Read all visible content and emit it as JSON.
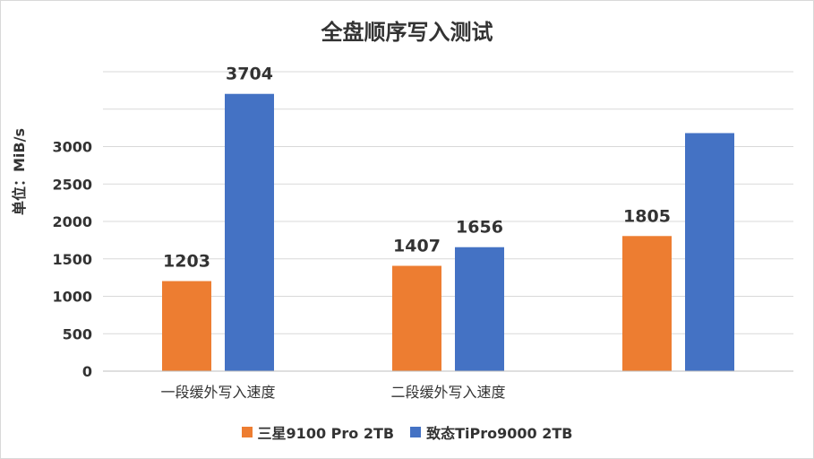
{
  "chart_data": {
    "type": "bar",
    "title": "全盘顺序写入测试",
    "ylabel": "单位：MiB/s",
    "xlabel": "",
    "ylim": [
      0,
      4000
    ],
    "yticks": [
      0,
      500,
      1000,
      1500,
      2000,
      2500,
      3000
    ],
    "ytick_labels": [
      "0",
      "500",
      "1000",
      "1500",
      "2000",
      "2500",
      "3000"
    ],
    "categories": [
      "一段缓外写入速度",
      "二段缓外写入速度",
      ""
    ],
    "series": [
      {
        "name": "三星9100 Pro 2TB",
        "color": "#ED7D31",
        "values": [
          1203,
          1407,
          1805
        ],
        "labels": [
          "1203",
          "1407",
          "1805"
        ]
      },
      {
        "name": "致态TiPro9000 2TB",
        "color": "#4472C4",
        "values": [
          3704,
          1656,
          3180
        ],
        "labels": [
          "3704",
          "1656",
          ""
        ]
      }
    ],
    "grid": true,
    "legend_position": "bottom"
  }
}
